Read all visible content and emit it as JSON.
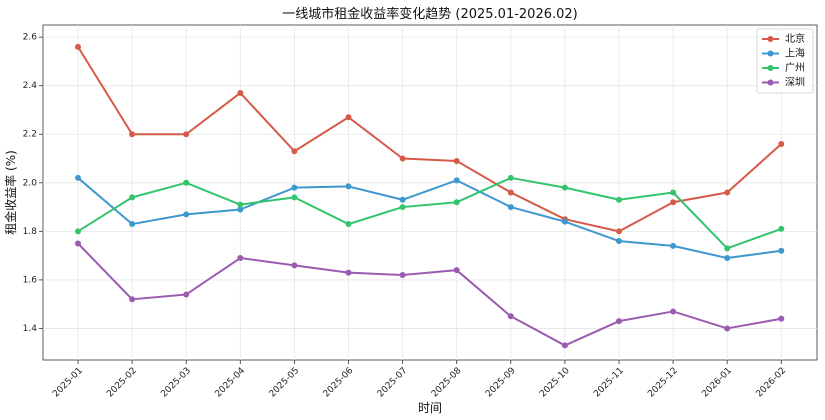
{
  "chart_data": {
    "type": "line",
    "title": "一线城市租金收益率变化趋势 (2025.01-2026.02)",
    "xlabel": "时间",
    "ylabel": "租金收益率 (%)",
    "categories": [
      "2025-01",
      "2025-02",
      "2025-03",
      "2025-04",
      "2025-05",
      "2025-06",
      "2025-07",
      "2025-08",
      "2025-09",
      "2025-10",
      "2025-11",
      "2025-12",
      "2026-01",
      "2026-02"
    ],
    "ylim": [
      1.27,
      2.65
    ],
    "yticks": [
      1.4,
      1.6,
      1.8,
      2.0,
      2.2,
      2.4,
      2.6
    ],
    "ytick_labels": [
      "1.4",
      "1.6",
      "1.8",
      "2.0",
      "2.2",
      "2.4",
      "2.6"
    ],
    "grid": true,
    "legend_position": "top-right",
    "series": [
      {
        "name": "北京",
        "color": "#d65a48",
        "values": [
          2.56,
          2.2,
          2.2,
          2.37,
          2.13,
          2.27,
          2.1,
          2.09,
          1.96,
          1.85,
          1.8,
          1.92,
          1.96,
          2.16
        ]
      },
      {
        "name": "上海",
        "color": "#3e97cf",
        "values": [
          2.02,
          1.83,
          1.87,
          1.89,
          1.98,
          1.985,
          1.93,
          2.01,
          1.9,
          1.84,
          1.76,
          1.74,
          1.69,
          1.72
        ]
      },
      {
        "name": "广州",
        "color": "#33c46e",
        "values": [
          1.8,
          1.94,
          2.0,
          1.91,
          1.94,
          1.83,
          1.9,
          1.92,
          2.02,
          1.98,
          1.93,
          1.96,
          1.73,
          1.81
        ]
      },
      {
        "name": "深圳",
        "color": "#9b5bb0",
        "values": [
          1.75,
          1.52,
          1.54,
          1.69,
          1.66,
          1.63,
          1.62,
          1.64,
          1.45,
          1.33,
          1.43,
          1.47,
          1.4,
          1.44
        ]
      }
    ]
  }
}
